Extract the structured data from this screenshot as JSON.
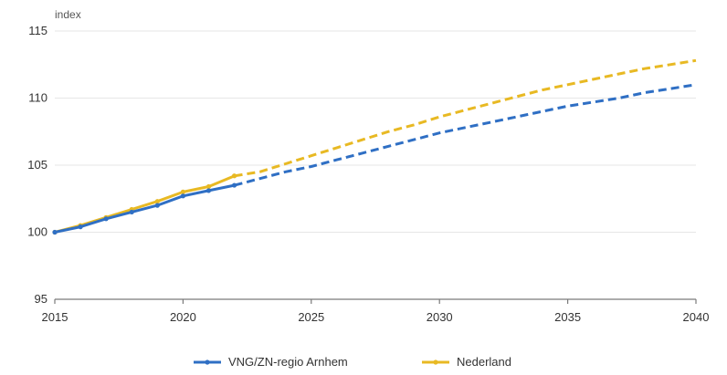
{
  "chart_data": {
    "type": "line",
    "title": "",
    "xlabel": "",
    "ylabel": "index",
    "xlim": [
      2015,
      2040
    ],
    "ylim": [
      95,
      115
    ],
    "x_ticks": [
      2015,
      2020,
      2025,
      2030,
      2035,
      2040
    ],
    "y_ticks": [
      95,
      100,
      105,
      110,
      115
    ],
    "grid": "horizontal",
    "legend_position": "bottom",
    "series": [
      {
        "name": "VNG/ZN-regio Arnhem",
        "color": "#2f6fc4",
        "observed": {
          "x": [
            2015,
            2016,
            2017,
            2018,
            2019,
            2020,
            2021,
            2022
          ],
          "y": [
            100.0,
            100.4,
            101.0,
            101.5,
            102.0,
            102.7,
            103.1,
            103.5
          ]
        },
        "projected": {
          "x": [
            2022,
            2023,
            2024,
            2025,
            2026,
            2027,
            2028,
            2029,
            2030,
            2031,
            2032,
            2033,
            2034,
            2035,
            2036,
            2037,
            2038,
            2039,
            2040
          ],
          "y": [
            103.5,
            104.0,
            104.5,
            104.9,
            105.4,
            105.9,
            106.4,
            106.9,
            107.4,
            107.8,
            108.2,
            108.6,
            109.0,
            109.4,
            109.7,
            110.0,
            110.4,
            110.7,
            111.0
          ]
        }
      },
      {
        "name": "Nederland",
        "color": "#e8b923",
        "observed": {
          "x": [
            2015,
            2016,
            2017,
            2018,
            2019,
            2020,
            2021,
            2022
          ],
          "y": [
            100.0,
            100.5,
            101.1,
            101.7,
            102.3,
            103.0,
            103.4,
            104.2
          ]
        },
        "projected": {
          "x": [
            2022,
            2023,
            2024,
            2025,
            2026,
            2027,
            2028,
            2029,
            2030,
            2031,
            2032,
            2033,
            2034,
            2035,
            2036,
            2037,
            2038,
            2039,
            2040
          ],
          "y": [
            104.2,
            104.5,
            105.1,
            105.7,
            106.3,
            106.9,
            107.5,
            108.0,
            108.6,
            109.1,
            109.6,
            110.1,
            110.6,
            111.0,
            111.4,
            111.8,
            112.2,
            112.5,
            112.8
          ]
        }
      }
    ]
  }
}
